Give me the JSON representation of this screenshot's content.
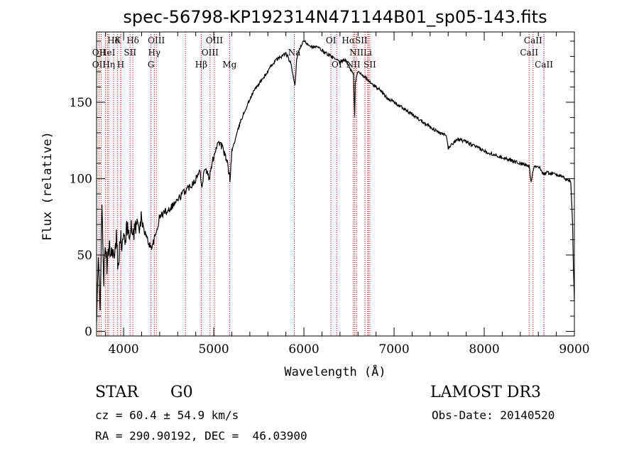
{
  "chart_data": {
    "type": "line",
    "title": "spec-56798-KP192314N471144B01_sp05-143.fits",
    "xlabel": "Wavelength (Å)",
    "ylabel": "Flux (relative)",
    "xlim": [
      3700,
      9000
    ],
    "ylim": [
      -3,
      196
    ],
    "x_ticks": [
      4000,
      5000,
      6000,
      7000,
      8000,
      9000
    ],
    "y_ticks": [
      0,
      50,
      100,
      150
    ],
    "series": [
      {
        "name": "flux",
        "x": [
          3700,
          3720,
          3740,
          3760,
          3780,
          3800,
          3820,
          3840,
          3860,
          3880,
          3900,
          3920,
          3940,
          3960,
          3980,
          4000,
          4050,
          4100,
          4150,
          4200,
          4250,
          4300,
          4330,
          4360,
          4400,
          4450,
          4500,
          4550,
          4600,
          4650,
          4700,
          4750,
          4800,
          4850,
          4870,
          4900,
          4950,
          5000,
          5050,
          5100,
          5150,
          5180,
          5200,
          5250,
          5300,
          5350,
          5400,
          5450,
          5500,
          5550,
          5600,
          5650,
          5700,
          5750,
          5800,
          5850,
          5880,
          5900,
          5920,
          5950,
          6000,
          6050,
          6100,
          6150,
          6200,
          6250,
          6300,
          6350,
          6400,
          6450,
          6500,
          6530,
          6550,
          6563,
          6570,
          6580,
          6600,
          6650,
          6700,
          6750,
          6800,
          6850,
          6900,
          6950,
          7000,
          7100,
          7200,
          7300,
          7400,
          7500,
          7580,
          7600,
          7700,
          7800,
          7900,
          8000,
          8100,
          8200,
          8300,
          8400,
          8498,
          8520,
          8542,
          8560,
          8600,
          8662,
          8700,
          8800,
          8900,
          8960,
          8980,
          8990,
          9000
        ],
        "y": [
          5,
          45,
          20,
          80,
          35,
          55,
          40,
          60,
          50,
          55,
          45,
          62,
          40,
          65,
          55,
          60,
          68,
          65,
          70,
          72,
          62,
          55,
          58,
          64,
          75,
          78,
          80,
          83,
          86,
          90,
          93,
          96,
          100,
          105,
          95,
          108,
          100,
          115,
          125,
          120,
          110,
          100,
          118,
          128,
          138,
          145,
          152,
          158,
          162,
          166,
          170,
          175,
          178,
          180,
          182,
          176,
          168,
          160,
          178,
          185,
          190,
          188,
          186,
          186,
          184,
          182,
          180,
          178,
          176,
          178,
          174,
          170,
          168,
          140,
          162,
          166,
          170,
          168,
          165,
          162,
          160,
          158,
          154,
          152,
          150,
          146,
          142,
          138,
          134,
          130,
          128,
          120,
          126,
          124,
          121,
          118,
          116,
          114,
          112,
          110,
          108,
          98,
          106,
          108,
          108,
          103,
          104,
          103,
          100,
          98,
          70,
          40,
          20
        ],
        "color": "#000000"
      }
    ],
    "spectral_lines": [
      {
        "label": "Hδ",
        "x": 3889,
        "row": 0
      },
      {
        "label": "K",
        "x": 3934,
        "row": 0
      },
      {
        "label": "Hδ",
        "x": 4102,
        "row": 0
      },
      {
        "label": "OIII",
        "x": 4363,
        "row": 0
      },
      {
        "label": "OIII",
        "x": 5007,
        "row": 0
      },
      {
        "label": "OI",
        "x": 6300,
        "row": 0
      },
      {
        "label": "HαSII",
        "x": 6563,
        "row": 0
      },
      {
        "label": "CaII",
        "x": 8542,
        "row": 0
      },
      {
        "label": "OII",
        "x": 3727,
        "row": 1
      },
      {
        "label": "HeI",
        "x": 3820,
        "row": 1
      },
      {
        "label": "SII",
        "x": 4072,
        "row": 1
      },
      {
        "label": "Hγ",
        "x": 4340,
        "row": 1
      },
      {
        "label": "OIII",
        "x": 4959,
        "row": 1
      },
      {
        "label": "Na",
        "x": 5893,
        "row": 1
      },
      {
        "label": "NII",
        "x": 6583,
        "row": 1
      },
      {
        "label": "Li",
        "x": 6708,
        "row": 1
      },
      {
        "label": "CaII",
        "x": 8498,
        "row": 1
      },
      {
        "label": "OII",
        "x": 3727,
        "row": 2
      },
      {
        "label": "Hη",
        "x": 3835,
        "row": 2
      },
      {
        "label": "H",
        "x": 3968,
        "row": 2
      },
      {
        "label": "G",
        "x": 4304,
        "row": 2
      },
      {
        "label": "Hβ",
        "x": 4861,
        "row": 2
      },
      {
        "label": "Mg",
        "x": 5175,
        "row": 2
      },
      {
        "label": "OI",
        "x": 6364,
        "row": 2
      },
      {
        "label": "NII",
        "x": 6548,
        "row": 2
      },
      {
        "label": "SII",
        "x": 6731,
        "row": 2
      },
      {
        "label": "CaII",
        "x": 8662,
        "row": 2
      }
    ],
    "line_color": "#cc0000",
    "extra_line_positions": [
      3750,
      3798,
      3970,
      4686,
      6678,
      6716
    ]
  },
  "info": {
    "object_class": "STAR",
    "subclass": "G0",
    "survey": "LAMOST DR3",
    "cz": "cz = 60.4 ± 54.9 km/s",
    "obs_date": "Obs-Date: 20140520",
    "coords": "RA = 290.90192, DEC =  46.03900"
  }
}
